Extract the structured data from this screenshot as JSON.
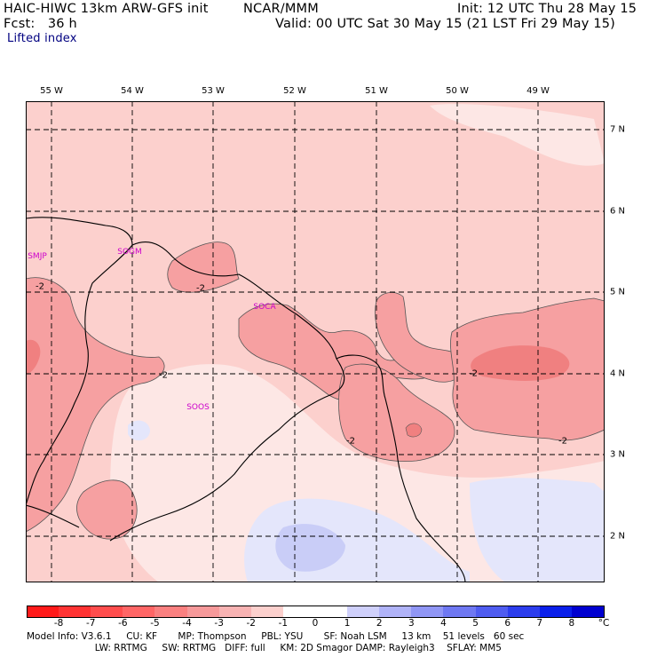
{
  "header": {
    "model": "HAIC-HIWC 13km ARW-GFS init",
    "org": "NCAR/MMM",
    "init": "Init: 12 UTC Thu 28 May 15",
    "fcst": "Fcst:   36 h",
    "valid": "Valid: 00 UTC Sat 30 May 15 (21 LST Fri 29 May 15)",
    "field": "Lifted index"
  },
  "map": {
    "lon_labels": [
      "55 W",
      "54 W",
      "53 W",
      "52 W",
      "51 W",
      "50 W",
      "49 W"
    ],
    "lat_labels": [
      "7 N",
      "6 N",
      "5 N",
      "4 N",
      "3 N",
      "2 N"
    ],
    "stations": [
      "SMJP",
      "SOGM",
      "SOCA",
      "SOOS"
    ],
    "contour_labels": [
      "-2",
      "-2",
      "-2",
      "-2",
      "-2",
      "-2"
    ],
    "colors": {
      "base": "#fcd0cd",
      "light": "#fde7e5",
      "medium": "#f6a0a1",
      "dark": "#f08080",
      "pale_blue": "#e4e6fb",
      "blue": "#c9cdf7"
    }
  },
  "colorbar": {
    "unit": "°C",
    "labels": [
      "-8",
      "-7",
      "-6",
      "-5",
      "-4",
      "-3",
      "-2",
      "-1",
      "0",
      "1",
      "2",
      "3",
      "4",
      "5",
      "6",
      "7",
      "8"
    ],
    "colors": [
      "#ff1a1a",
      "#ff3333",
      "#ff4d4d",
      "#ff6666",
      "#fa8080",
      "#f6999a",
      "#f8b3b3",
      "#fcd0cd",
      "#ffffff",
      "#ffffff",
      "#cfd0fb",
      "#b0b3f8",
      "#9096f5",
      "#6f78f2",
      "#4f5cf0",
      "#2c3ded",
      "#0a1fea",
      "#0000d0"
    ]
  },
  "footer": {
    "line1": "Model Info: V3.6.1     CU: KF       MP: Thompson     PBL: YSU       SF: Noah LSM     13 km    51 levels   60 sec",
    "line2": "                       LW: RRTMG     SW: RRTMG   DIFF: full     KM: 2D Smagor DAMP: Rayleigh3    SFLAY: MM5"
  }
}
